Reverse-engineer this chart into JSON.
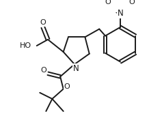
{
  "bg_color": "#ffffff",
  "line_color": "#1a1a1a",
  "line_width": 1.4,
  "figsize": [
    2.37,
    1.92
  ],
  "dpi": 100,
  "xlim": [
    0,
    237
  ],
  "ylim": [
    0,
    192
  ]
}
